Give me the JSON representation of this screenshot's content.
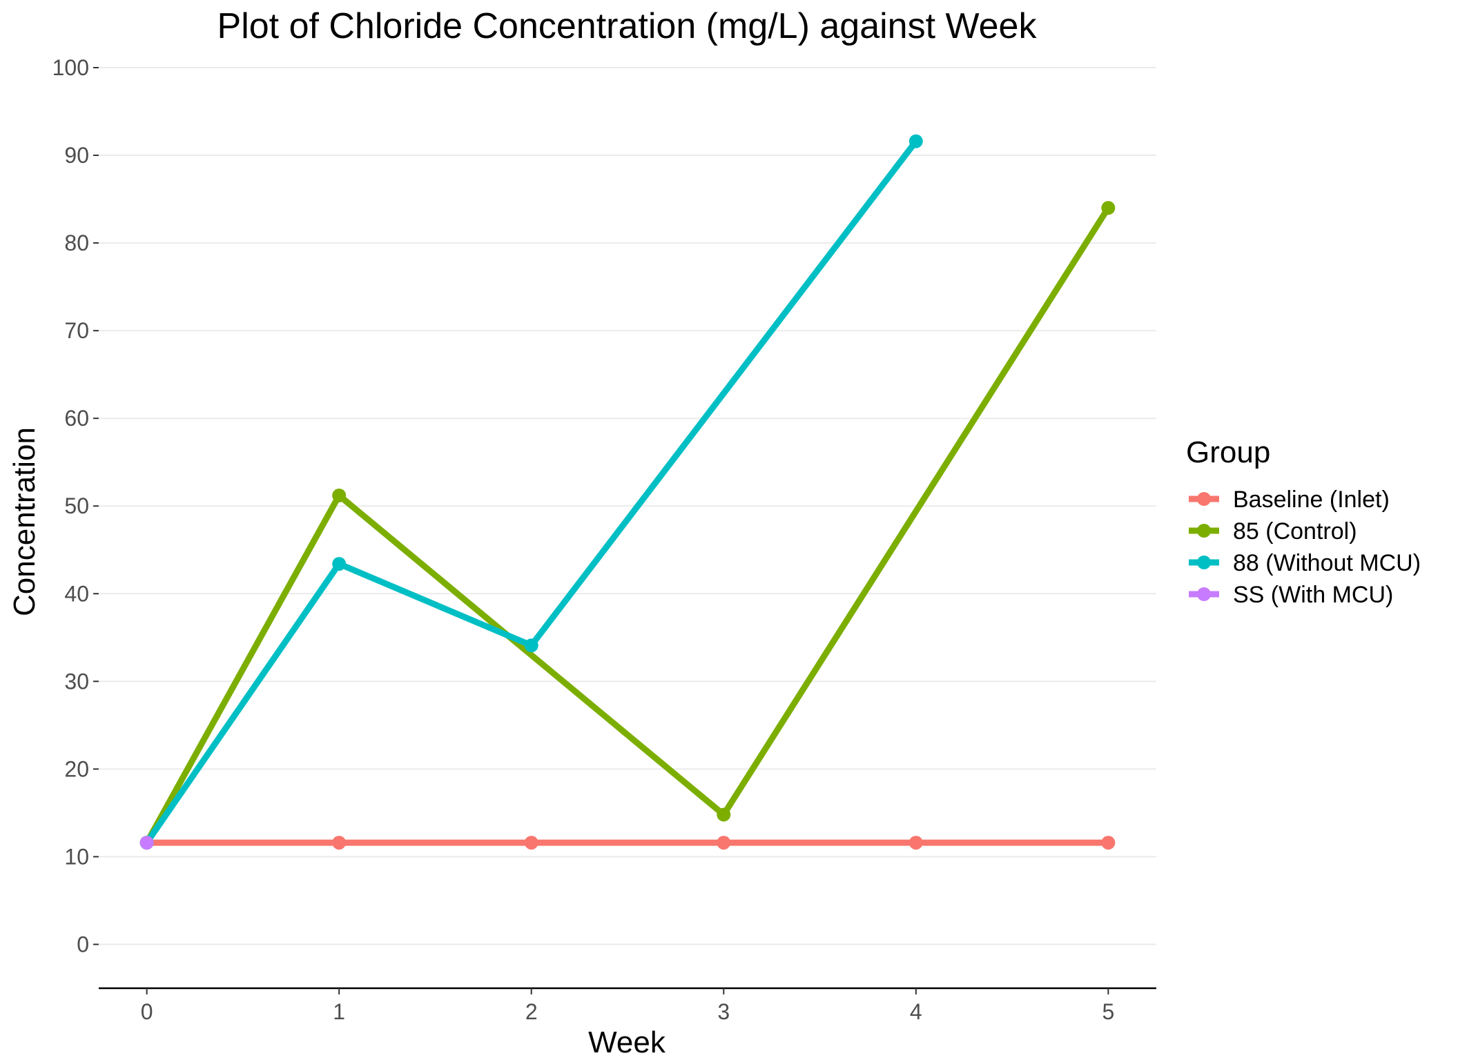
{
  "chart_data": {
    "type": "line",
    "title": "Plot of Chloride Concentration (mg/L) against Week",
    "xlabel": "Week",
    "ylabel": "Concentration",
    "xlim": [
      -0.25,
      5.25
    ],
    "ylim": [
      -5,
      100
    ],
    "x_ticks": [
      0,
      1,
      2,
      3,
      4,
      5
    ],
    "y_ticks": [
      0,
      10,
      20,
      30,
      40,
      50,
      60,
      70,
      80,
      90,
      100
    ],
    "grid": "horizontal major",
    "legend": {
      "title": "Group",
      "position": "right"
    },
    "series": [
      {
        "name": "Baseline (Inlet)",
        "color": "#F8766D",
        "x": [
          0,
          1,
          2,
          3,
          4,
          5
        ],
        "y": [
          11.6,
          11.6,
          11.6,
          11.6,
          11.6,
          11.6
        ]
      },
      {
        "name": "85 (Control)",
        "color": "#7CAE00",
        "x": [
          0,
          1,
          2,
          3,
          5
        ],
        "y": [
          11.6,
          51.2,
          null,
          14.8,
          84.0
        ]
      },
      {
        "name": "88 (Without MCU)",
        "color": "#00BFC4",
        "x": [
          0,
          1,
          2,
          4
        ],
        "y": [
          11.6,
          43.4,
          34.1,
          91.6
        ]
      },
      {
        "name": "SS (With MCU)",
        "color": "#C77CFF",
        "x": [
          0
        ],
        "y": [
          11.6
        ]
      }
    ]
  }
}
